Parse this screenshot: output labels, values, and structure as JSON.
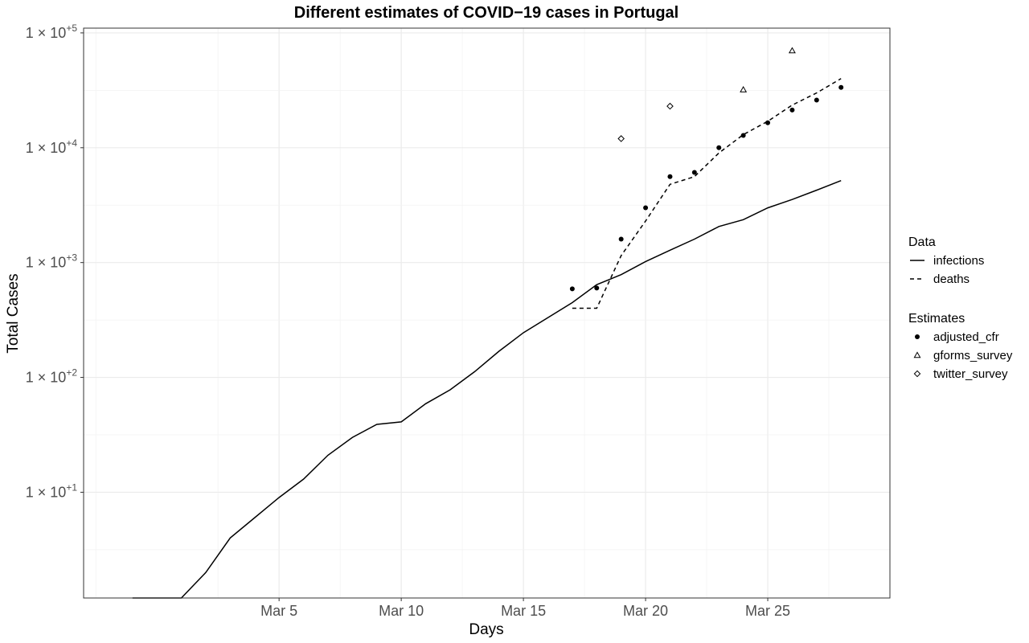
{
  "chart_data": {
    "type": "line",
    "title": "Different estimates of COVID−19 cases in Portugal",
    "xlabel": "Days",
    "ylabel": "Total Cases",
    "y_scale": "log10",
    "ylim": [
      1.2,
      110000
    ],
    "xlim": [
      "2020-02-26",
      "2020-03-30"
    ],
    "grid": true,
    "legend_placement": "right",
    "x_ticks": [
      {
        "date": "2020-03-05",
        "label": "Mar 5"
      },
      {
        "date": "2020-03-10",
        "label": "Mar 10"
      },
      {
        "date": "2020-03-15",
        "label": "Mar 15"
      },
      {
        "date": "2020-03-20",
        "label": "Mar 20"
      },
      {
        "date": "2020-03-25",
        "label": "Mar 25"
      }
    ],
    "y_ticks": [
      {
        "value": 10,
        "exp": "+1"
      },
      {
        "value": 100,
        "exp": "+2"
      },
      {
        "value": 1000,
        "exp": "+3"
      },
      {
        "value": 10000,
        "exp": "+4"
      },
      {
        "value": 100000,
        "exp": "+5"
      }
    ],
    "y_tick_prefix": "1 × 10",
    "legend_groups": [
      {
        "title": "Data",
        "items": [
          "infections",
          "deaths"
        ]
      },
      {
        "title": "Estimates",
        "items": [
          "adjusted_cfr",
          "gforms_survey",
          "twitter_survey"
        ]
      }
    ],
    "series": [
      {
        "name": "infections",
        "kind": "line",
        "dash": "solid",
        "points": [
          [
            "2020-02-28",
            1.2
          ],
          [
            "2020-02-29",
            1.2
          ],
          [
            "2020-03-01",
            1.2
          ],
          [
            "2020-03-02",
            2
          ],
          [
            "2020-03-03",
            4
          ],
          [
            "2020-03-04",
            6
          ],
          [
            "2020-03-05",
            9
          ],
          [
            "2020-03-06",
            13
          ],
          [
            "2020-03-07",
            21
          ],
          [
            "2020-03-08",
            30
          ],
          [
            "2020-03-09",
            39
          ],
          [
            "2020-03-10",
            41
          ],
          [
            "2020-03-11",
            59
          ],
          [
            "2020-03-12",
            78
          ],
          [
            "2020-03-13",
            112
          ],
          [
            "2020-03-14",
            169
          ],
          [
            "2020-03-15",
            245
          ],
          [
            "2020-03-16",
            331
          ],
          [
            "2020-03-17",
            448
          ],
          [
            "2020-03-18",
            642
          ],
          [
            "2020-03-19",
            785
          ],
          [
            "2020-03-20",
            1020
          ],
          [
            "2020-03-21",
            1280
          ],
          [
            "2020-03-22",
            1600
          ],
          [
            "2020-03-23",
            2060
          ],
          [
            "2020-03-24",
            2362
          ],
          [
            "2020-03-25",
            2995
          ],
          [
            "2020-03-26",
            3544
          ],
          [
            "2020-03-27",
            4268
          ],
          [
            "2020-03-28",
            5170
          ]
        ]
      },
      {
        "name": "deaths",
        "kind": "line",
        "dash": "dashed",
        "points": [
          [
            "2020-03-17",
            400
          ],
          [
            "2020-03-18",
            400
          ],
          [
            "2020-03-19",
            1150
          ],
          [
            "2020-03-20",
            2300
          ],
          [
            "2020-03-21",
            4800
          ],
          [
            "2020-03-22",
            5600
          ],
          [
            "2020-03-23",
            9000
          ],
          [
            "2020-03-24",
            13000
          ],
          [
            "2020-03-25",
            17000
          ],
          [
            "2020-03-26",
            23500
          ],
          [
            "2020-03-27",
            30000
          ],
          [
            "2020-03-28",
            40000
          ]
        ]
      },
      {
        "name": "adjusted_cfr",
        "kind": "points",
        "shape": "circle",
        "points": [
          [
            "2020-03-17",
            590
          ],
          [
            "2020-03-18",
            600
          ],
          [
            "2020-03-19",
            1600
          ],
          [
            "2020-03-20",
            3000
          ],
          [
            "2020-03-21",
            5600
          ],
          [
            "2020-03-22",
            6100
          ],
          [
            "2020-03-23",
            10000
          ],
          [
            "2020-03-24",
            12800
          ],
          [
            "2020-03-25",
            16500
          ],
          [
            "2020-03-26",
            21300
          ],
          [
            "2020-03-27",
            26000
          ],
          [
            "2020-03-28",
            33500
          ]
        ]
      },
      {
        "name": "gforms_survey",
        "kind": "points",
        "shape": "triangle",
        "points": [
          [
            "2020-03-24",
            32000
          ],
          [
            "2020-03-26",
            70000
          ]
        ]
      },
      {
        "name": "twitter_survey",
        "kind": "points",
        "shape": "diamond",
        "points": [
          [
            "2020-03-19",
            12000
          ],
          [
            "2020-03-21",
            23000
          ]
        ]
      }
    ]
  }
}
